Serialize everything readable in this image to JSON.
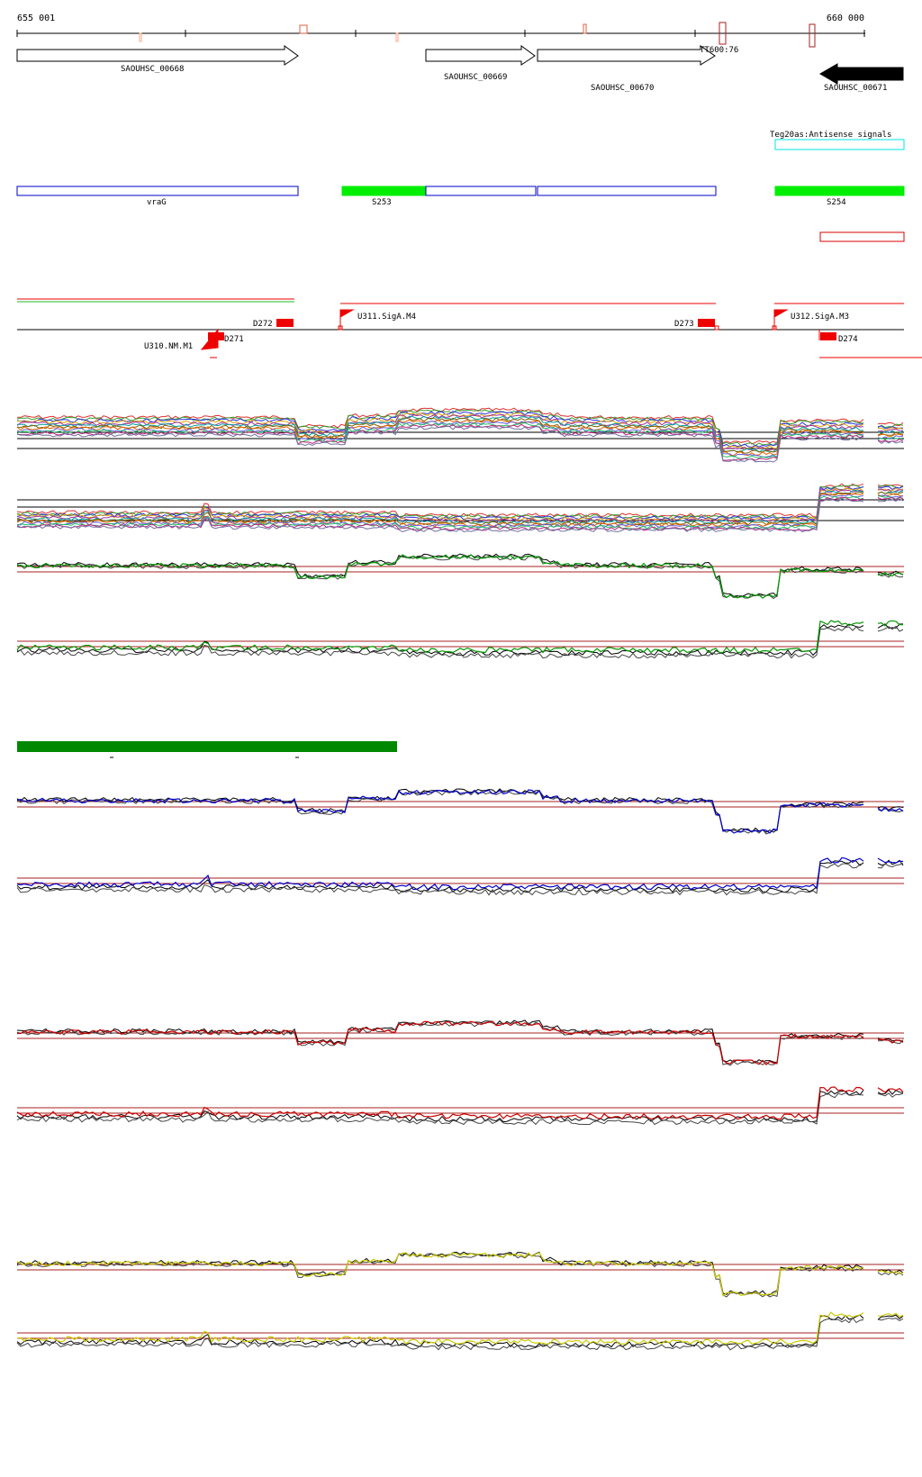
{
  "axis": {
    "start_label": "655 001",
    "end_label": "660 000"
  },
  "genes": [
    {
      "id": "SAOUHSC_00668",
      "strand": "forward"
    },
    {
      "id": "SAOUHSC_00669",
      "strand": "forward"
    },
    {
      "id": "SAOUHSC_00670",
      "strand": "forward"
    },
    {
      "id": "SAOUHSC_00671",
      "strand": "reverse"
    }
  ],
  "terminator_label": "TT600:76",
  "antisense_track": {
    "label": "Teg20as:Antisense signals",
    "color": "#00e5e5"
  },
  "gene_name_track": {
    "gene_label": "vraG",
    "s_labels": [
      "S253",
      "S254"
    ],
    "colors": {
      "outline": "#0000c8",
      "fill": "#00ee00",
      "red_outline": "#dd0000"
    }
  },
  "regulatory_track": {
    "promoters": [
      "U311.SigA.M4",
      "U312.SigA.M3",
      "U310.NM.M1"
    ],
    "downstream": [
      "D272",
      "D273",
      "D271",
      "D274"
    ],
    "color": "#ee0000"
  },
  "panels": [
    {
      "name": "multi-sample-sense",
      "style": "rainbow"
    },
    {
      "name": "multi-sample-antisense",
      "style": "rainbow"
    },
    {
      "name": "green-sense",
      "color": "#009900"
    },
    {
      "name": "green-antisense",
      "color": "#009900"
    },
    {
      "name": "blue-sense",
      "color": "#0000cc"
    },
    {
      "name": "blue-antisense",
      "color": "#0000cc"
    },
    {
      "name": "red-sense",
      "color": "#cc0000"
    },
    {
      "name": "red-antisense",
      "color": "#cc0000"
    },
    {
      "name": "yellow-sense",
      "color": "#cccc00"
    },
    {
      "name": "yellow-antisense",
      "color": "#cccc00"
    }
  ],
  "colors": {
    "reference_line": "#aa2222",
    "tracks_black": "#000000",
    "condition_bar": "#008800"
  }
}
